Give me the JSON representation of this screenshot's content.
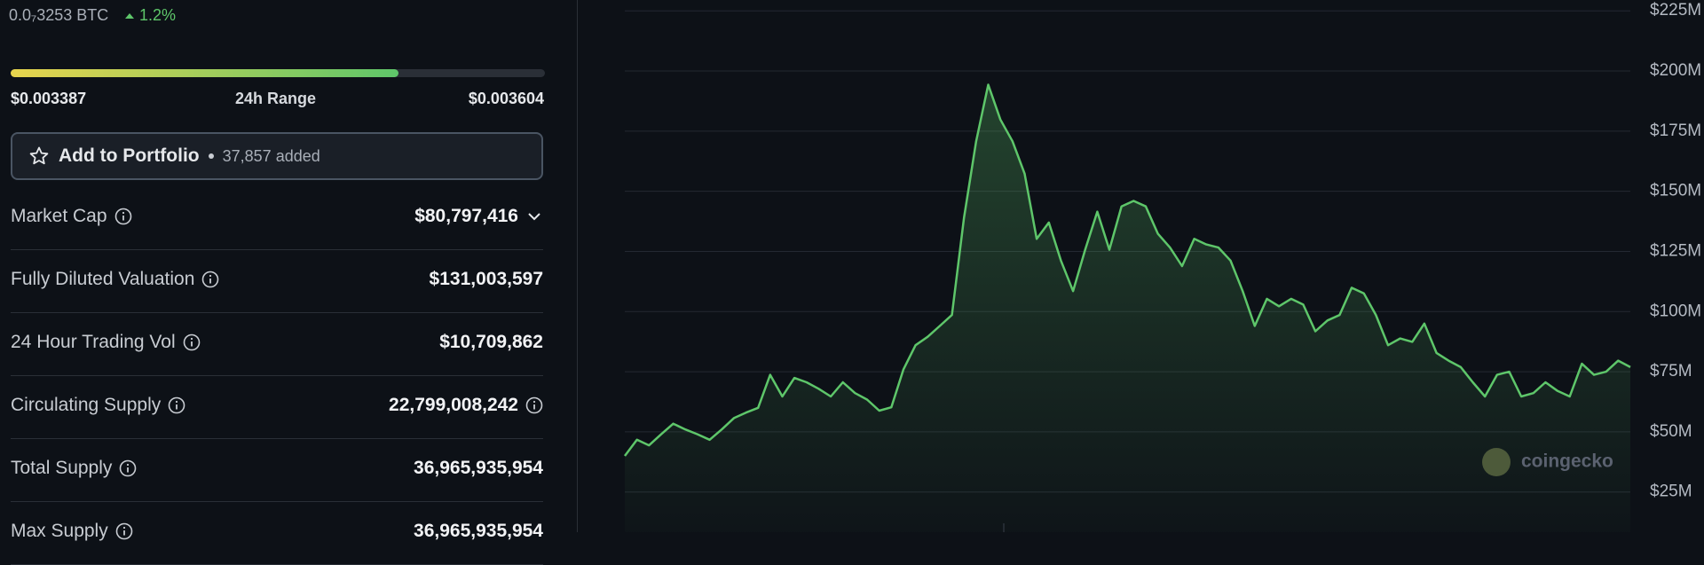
{
  "header": {
    "btc_price": "0.0₇3253 BTC",
    "change": "1.2%"
  },
  "range": {
    "low": "$0.003387",
    "label": "24h Range",
    "high": "$0.003604"
  },
  "portfolio": {
    "button": "Add to Portfolio",
    "added": "37,857 added"
  },
  "stats": [
    {
      "label": "Market Cap",
      "value": "$80,797,416"
    },
    {
      "label": "Fully Diluted Valuation",
      "value": "$131,003,597"
    },
    {
      "label": "24 Hour Trading Vol",
      "value": "$10,709,862"
    },
    {
      "label": "Circulating Supply",
      "value": "22,799,008,242"
    },
    {
      "label": "Total Supply",
      "value": "36,965,935,954"
    },
    {
      "label": "Max Supply",
      "value": "36,965,935,954"
    }
  ],
  "watermark": "coingecko",
  "chart_data": {
    "type": "line",
    "ylim": [
      8.3,
      229.5
    ],
    "yticks": [
      {
        "value": 25,
        "label": "$25M"
      },
      {
        "value": 50,
        "label": "$50M"
      },
      {
        "value": 75,
        "label": "$75M"
      },
      {
        "value": 100,
        "label": "$100M"
      },
      {
        "value": 125,
        "label": "$125M"
      },
      {
        "value": 150,
        "label": "$150M"
      },
      {
        "value": 175,
        "label": "$175M"
      },
      {
        "value": 200,
        "label": "$200M"
      },
      {
        "value": 225,
        "label": "$225M"
      }
    ],
    "grid": true,
    "series": [
      {
        "color": "#5ec66a",
        "values": [
          40,
          46.7,
          44.4,
          49,
          53.4,
          51,
          49,
          46.7,
          51,
          55.7,
          58,
          60,
          73.7,
          64.7,
          72.4,
          70.6,
          67.9,
          64.7,
          70.6,
          66.1,
          63.4,
          58.8,
          60.2,
          76,
          86,
          89.5,
          94,
          98.6,
          139,
          170.8,
          194.3,
          179.8,
          170.8,
          157.3,
          130.2,
          137,
          121.2,
          108.5,
          125.7,
          141.5,
          125.7,
          143.7,
          146,
          143.7,
          132.4,
          126.6,
          118.9,
          130.2,
          127.9,
          126.6,
          121.2,
          108.5,
          94,
          105.3,
          102.2,
          105.3,
          102.9,
          91.8,
          96.3,
          98.6,
          109.9,
          107.6,
          98.6,
          86,
          88.8,
          87.4,
          95,
          82.8,
          79.6,
          76.9,
          70.6,
          64.7,
          73.7,
          75,
          64.7,
          66.1,
          70.6,
          67,
          64.7,
          78.3,
          73.7,
          75,
          79.6,
          76.9
        ]
      }
    ]
  }
}
